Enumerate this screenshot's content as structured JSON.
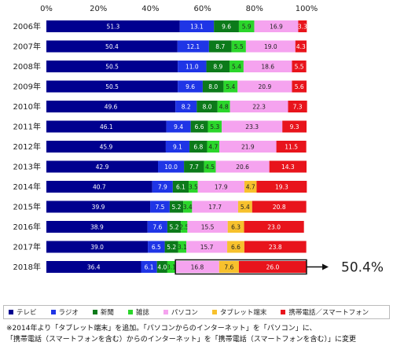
{
  "chart_data": {
    "type": "bar",
    "orientation": "horizontal",
    "stacked": true,
    "categories": [
      "2006年",
      "2007年",
      "2008年",
      "2009年",
      "2010年",
      "2011年",
      "2012年",
      "2013年",
      "2014年",
      "2015年",
      "2016年",
      "2017年",
      "2018年"
    ],
    "xlim": [
      0,
      100
    ],
    "x_ticks": [
      "0%",
      "20%",
      "40%",
      "60%",
      "80%",
      "100%"
    ],
    "series": [
      {
        "name": "テレビ",
        "color": "#00008f",
        "values": [
          51.3,
          50.4,
          50.5,
          50.5,
          49.6,
          46.1,
          45.9,
          42.9,
          40.7,
          39.9,
          38.9,
          39.0,
          36.4
        ]
      },
      {
        "name": "ラジオ",
        "color": "#1f35e6",
        "values": [
          13.1,
          12.1,
          11.0,
          9.6,
          8.2,
          9.4,
          9.1,
          10.0,
          7.9,
          7.5,
          7.6,
          6.5,
          6.1
        ]
      },
      {
        "name": "新聞",
        "color": "#0c7a1a",
        "values": [
          9.6,
          8.7,
          8.9,
          8.0,
          8.0,
          6.6,
          6.8,
          7.7,
          6.1,
          5.2,
          5.2,
          5.2,
          4.0
        ]
      },
      {
        "name": "雑誌",
        "color": "#2bd62b",
        "values": [
          5.9,
          5.5,
          5.4,
          5.4,
          4.8,
          5.3,
          4.7,
          4.5,
          3.5,
          3.4,
          2.5,
          3.1,
          3.1
        ]
      },
      {
        "name": "パソコン",
        "color": "#f5a3ef",
        "values": [
          16.9,
          19.0,
          18.6,
          20.9,
          22.3,
          23.3,
          21.9,
          20.6,
          17.9,
          17.7,
          15.5,
          15.7,
          16.8
        ]
      },
      {
        "name": "タブレット端末",
        "color": "#f7c12d",
        "values": [
          null,
          null,
          null,
          null,
          null,
          null,
          null,
          null,
          4.7,
          5.4,
          6.3,
          6.6,
          7.6
        ]
      },
      {
        "name": "携帯電話／スマートフォン",
        "color": "#e8141c",
        "values": [
          3.3,
          4.3,
          5.5,
          5.6,
          7.3,
          9.3,
          11.5,
          14.3,
          19.3,
          20.8,
          23.0,
          23.8,
          26.0
        ]
      }
    ],
    "annotation": {
      "text": "50.4%",
      "category": "2018年"
    },
    "grid": false,
    "legend_position": "bottom"
  },
  "notes": [
    "※2014年より「タブレット端末」を追加。「パソコンからのインターネット」を「パソコン」に、",
    "「携帯電話（スマートフォンを含む）からのインターネット」を「携帯電話（スマートフォンを含む）」に変更"
  ]
}
